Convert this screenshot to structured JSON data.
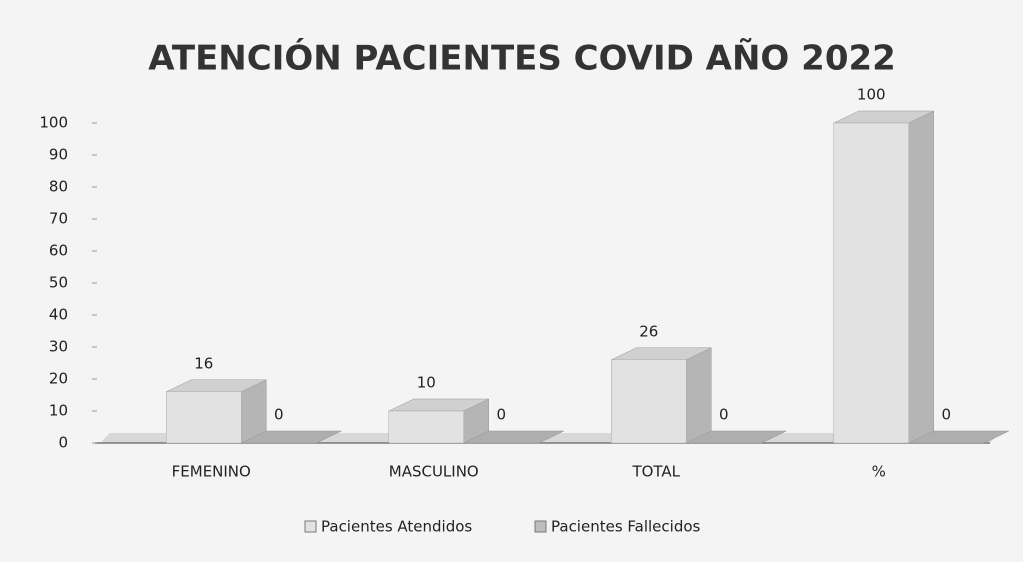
{
  "chart_data": {
    "type": "bar3d",
    "title": "ATENCIÓN PACIENTES  COVID AÑO 2022",
    "categories": [
      "FEMENINO",
      "MASCULINO",
      "TOTAL",
      "%"
    ],
    "series": [
      {
        "name": "Pacientes Atendidos",
        "color": "#e2e2e2",
        "values": [
          16,
          10,
          26,
          100
        ]
      },
      {
        "name": "Pacientes Fallecidos",
        "color": "#bdbdbd",
        "values": [
          0,
          0,
          0,
          0
        ]
      }
    ],
    "ylim": [
      0,
      100
    ],
    "yticks": [
      0,
      10,
      20,
      30,
      40,
      50,
      60,
      70,
      80,
      90,
      100
    ],
    "legend": "bottom"
  }
}
